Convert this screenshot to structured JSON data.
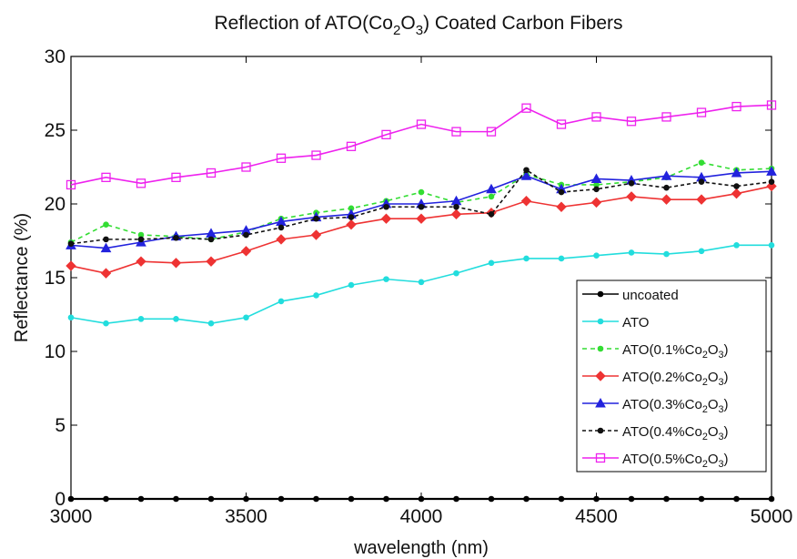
{
  "chart_data": {
    "type": "line",
    "title": {
      "prefix": "Reflection of ATO(Co",
      "sub1": "2",
      "mid": "O",
      "sub2": "3",
      "suffix": ") Coated Carbon Fibers"
    },
    "xlabel": "wavelength (nm)",
    "ylabel": "Reflectance (%)",
    "xlim": [
      3000,
      5000
    ],
    "ylim": [
      0,
      30
    ],
    "xticks": [
      "3000",
      "3500",
      "4000",
      "4500",
      "5000"
    ],
    "yticks": [
      "0",
      "5",
      "10",
      "15",
      "20",
      "25",
      "30"
    ],
    "grid": false,
    "legend_position": "bottom-right",
    "x": [
      3000,
      3100,
      3200,
      3300,
      3400,
      3500,
      3600,
      3700,
      3800,
      3900,
      4000,
      4100,
      4200,
      4300,
      4400,
      4500,
      4600,
      4700,
      4800,
      4900,
      5000
    ],
    "series": [
      {
        "name": "uncoated",
        "label": {
          "prefix": "uncoated",
          "sub1": "",
          "mid": "",
          "sub2": "",
          "suffix": ""
        },
        "color": "#000000",
        "marker": "dot",
        "dash": "",
        "values": [
          0,
          0,
          0,
          0,
          0,
          0,
          0,
          0,
          0,
          0,
          0,
          0,
          0,
          0,
          0,
          0,
          0,
          0,
          0,
          0,
          0
        ]
      },
      {
        "name": "ATO",
        "label": {
          "prefix": "ATO",
          "sub1": "",
          "mid": "",
          "sub2": "",
          "suffix": ""
        },
        "color": "#22dddd",
        "marker": "dot",
        "dash": "",
        "values": [
          12.3,
          11.9,
          12.2,
          12.2,
          11.9,
          12.3,
          13.4,
          13.8,
          14.5,
          14.9,
          14.7,
          15.3,
          16.0,
          16.3,
          16.3,
          16.5,
          16.7,
          16.6,
          16.8,
          17.2,
          17.2
        ]
      },
      {
        "name": "ATO(0.1%Co2O3)",
        "label": {
          "prefix": "ATO(0.1%Co",
          "sub1": "2",
          "mid": "O",
          "sub2": "3",
          "suffix": ")"
        },
        "color": "#33dd33",
        "marker": "dot",
        "dash": "5,4",
        "values": [
          17.4,
          18.6,
          17.9,
          17.8,
          17.6,
          18.1,
          19.0,
          19.4,
          19.7,
          20.2,
          20.8,
          20.1,
          20.5,
          22.0,
          21.3,
          21.3,
          21.5,
          21.8,
          22.8,
          22.3,
          22.4
        ]
      },
      {
        "name": "ATO(0.2%Co2O3)",
        "label": {
          "prefix": "ATO(0.2%Co",
          "sub1": "2",
          "mid": "O",
          "sub2": "3",
          "suffix": ")"
        },
        "color": "#ee3333",
        "marker": "diamond",
        "dash": "",
        "values": [
          15.8,
          15.3,
          16.1,
          16.0,
          16.1,
          16.8,
          17.6,
          17.9,
          18.6,
          19.0,
          19.0,
          19.3,
          19.4,
          20.2,
          19.8,
          20.1,
          20.5,
          20.3,
          20.3,
          20.7,
          21.2
        ]
      },
      {
        "name": "ATO(0.3%Co2O3)",
        "label": {
          "prefix": "ATO(0.3%Co",
          "sub1": "2",
          "mid": "O",
          "sub2": "3",
          "suffix": ")"
        },
        "color": "#2222dd",
        "marker": "triangle",
        "dash": "",
        "values": [
          17.2,
          17.0,
          17.4,
          17.8,
          18.0,
          18.2,
          18.8,
          19.1,
          19.3,
          20.0,
          20.0,
          20.2,
          21.0,
          21.9,
          21.0,
          21.7,
          21.6,
          21.9,
          21.8,
          22.1,
          22.2
        ]
      },
      {
        "name": "ATO(0.4%Co2O3)",
        "label": {
          "prefix": "ATO(0.4%Co",
          "sub1": "2",
          "mid": "O",
          "sub2": "3",
          "suffix": ")"
        },
        "color": "#111111",
        "marker": "dot",
        "dash": "4,3",
        "values": [
          17.3,
          17.6,
          17.6,
          17.7,
          17.6,
          17.9,
          18.4,
          19.0,
          19.1,
          19.8,
          19.8,
          19.8,
          19.3,
          22.3,
          20.8,
          21.0,
          21.4,
          21.1,
          21.5,
          21.2,
          21.5
        ]
      },
      {
        "name": "ATO(0.5%Co2O3)",
        "label": {
          "prefix": "ATO(0.5%Co",
          "sub1": "2",
          "mid": "O",
          "sub2": "3",
          "suffix": ")"
        },
        "color": "#ee22ee",
        "marker": "square",
        "dash": "",
        "values": [
          21.3,
          21.8,
          21.4,
          21.8,
          22.1,
          22.5,
          23.1,
          23.3,
          23.9,
          24.7,
          25.4,
          24.9,
          24.9,
          26.5,
          25.4,
          25.9,
          25.6,
          25.9,
          26.2,
          26.6,
          26.7
        ]
      }
    ]
  }
}
